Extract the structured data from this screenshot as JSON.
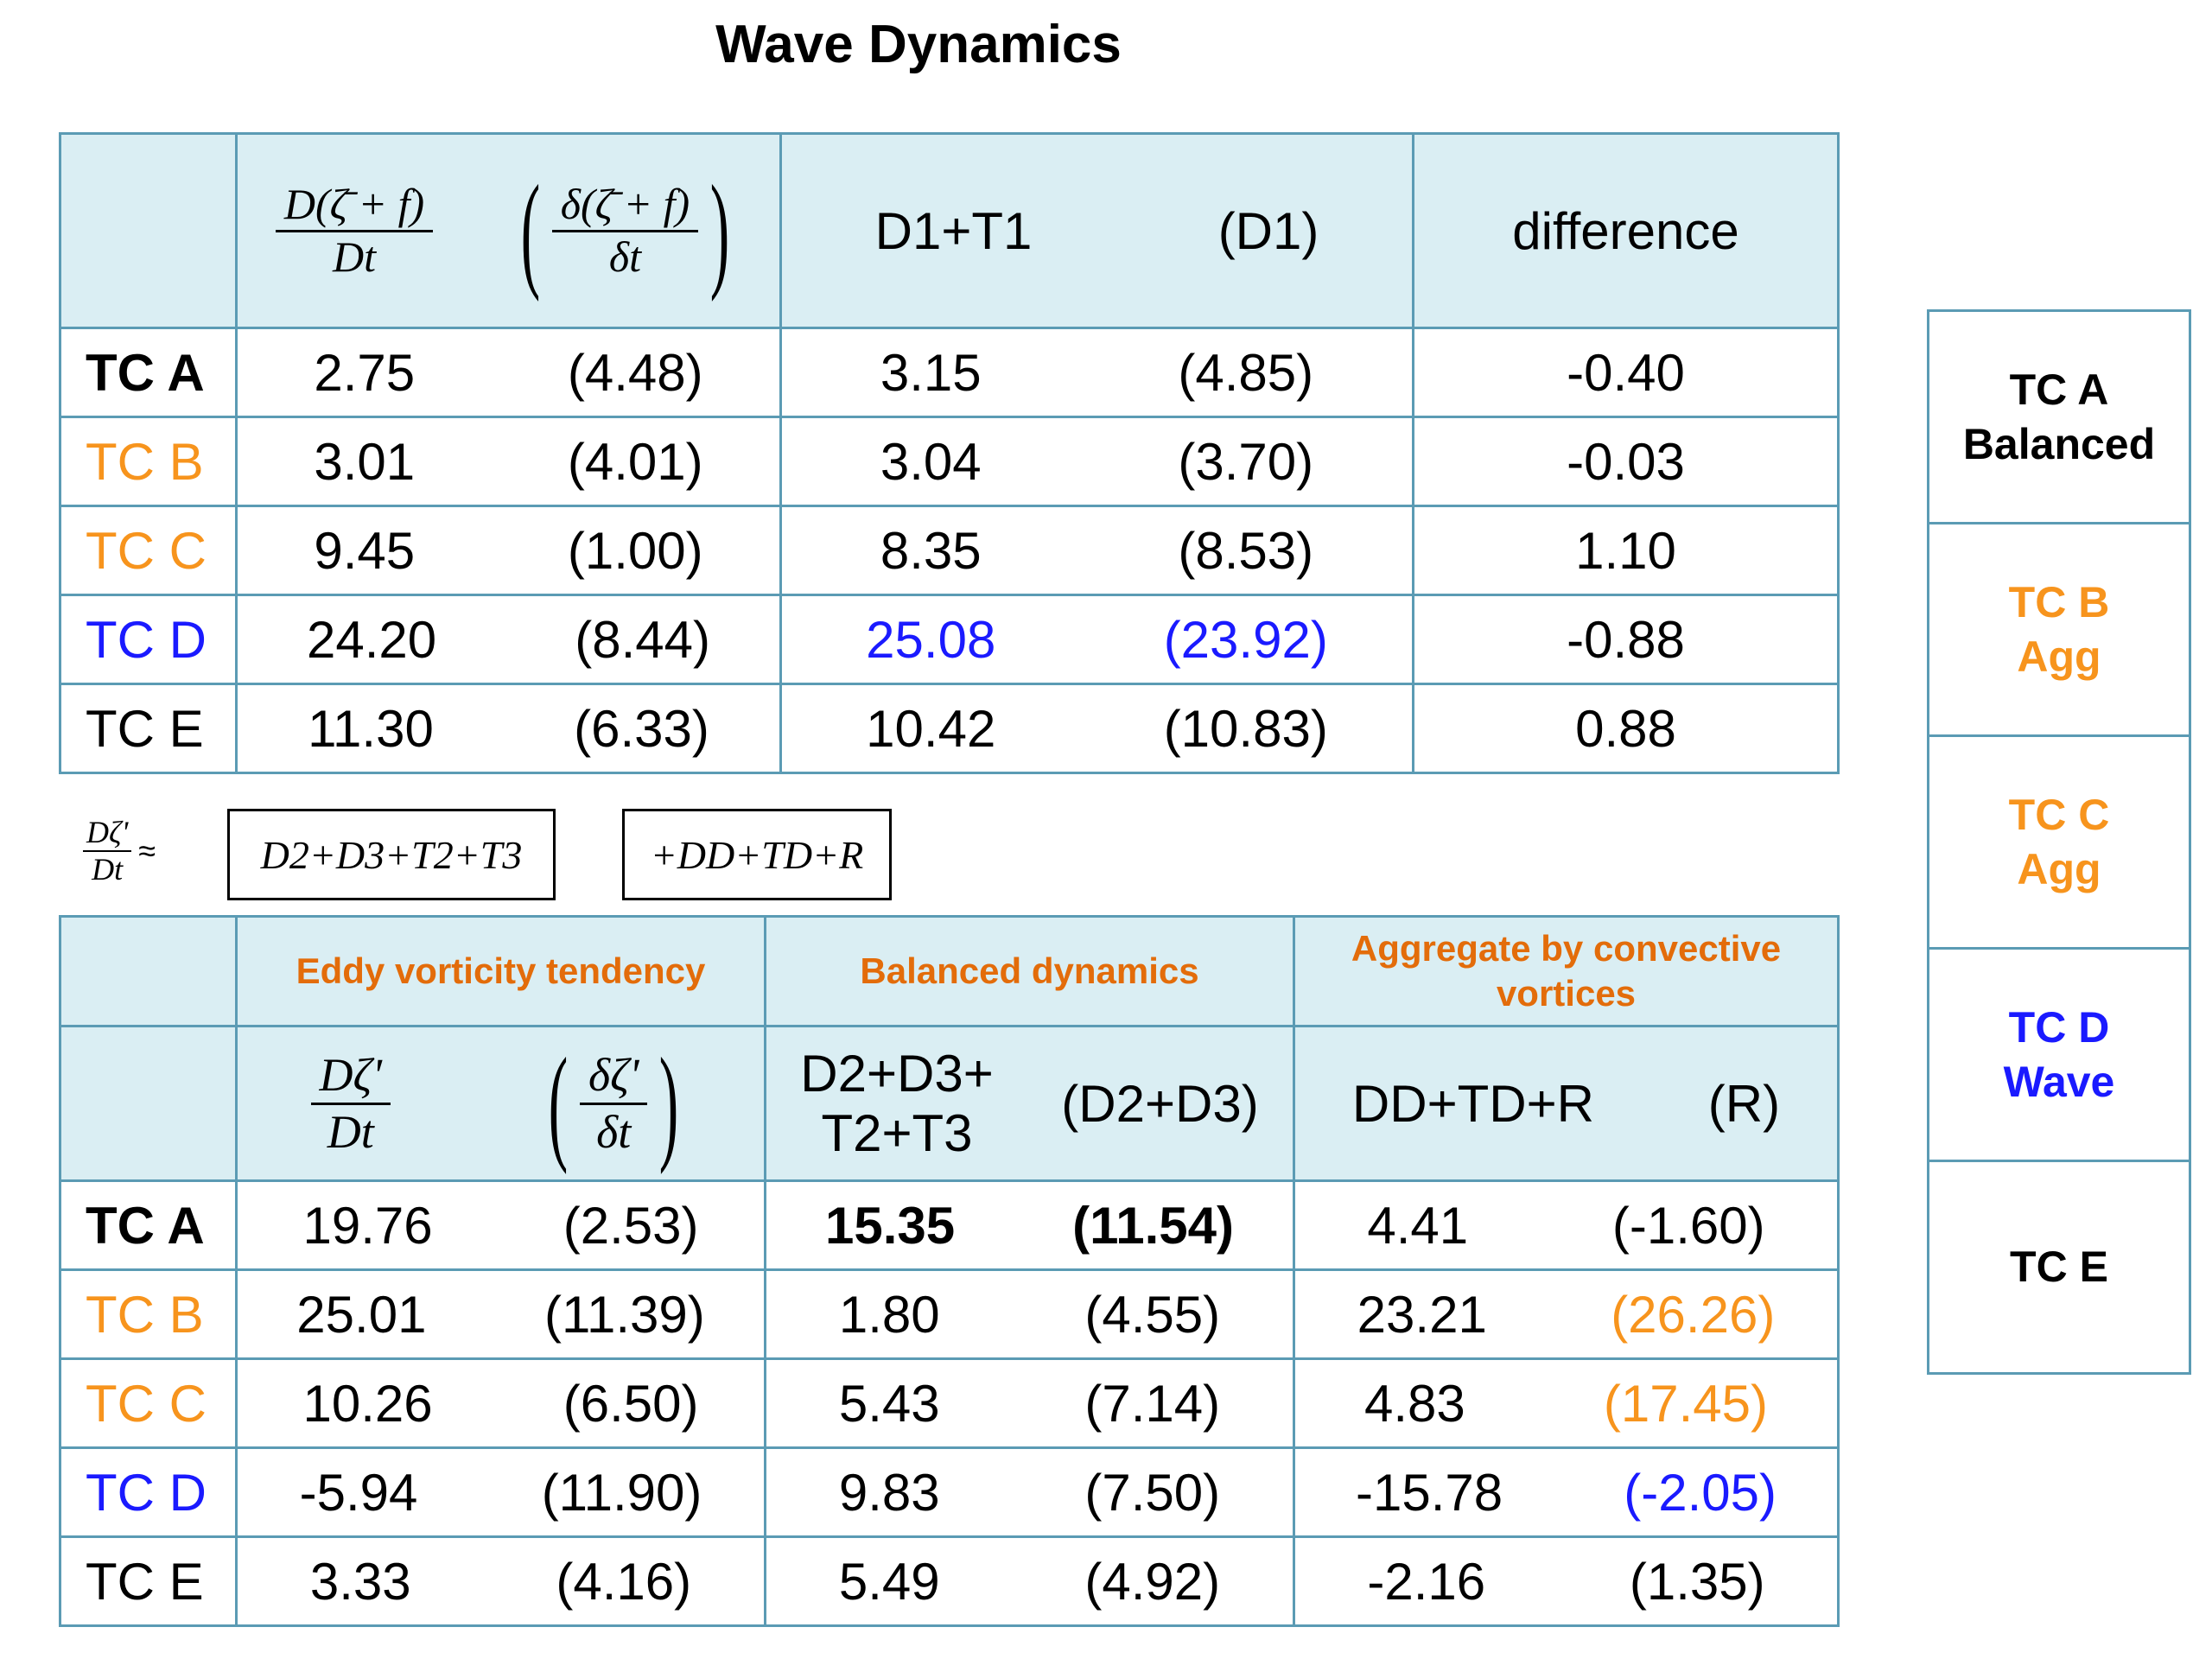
{
  "title": "Wave Dynamics",
  "top_table": {
    "col1_frac": {
      "num": "D(ζ̄ + f)",
      "den": "Dt"
    },
    "col1_paren_frac": {
      "num": "δ(ζ̄ + f)",
      "den": "δt"
    },
    "col2_head": "D1+T1",
    "col2_paren_head": "(D1)",
    "col3_head": "difference",
    "rows": [
      {
        "label": "TC A",
        "v1": "2.75",
        "v1p": "(4.48)",
        "v2": "3.15",
        "v2p": "(4.85)",
        "diff": "-0.40"
      },
      {
        "label": "TC B",
        "v1": "3.01",
        "v1p": "(4.01)",
        "v2": "3.04",
        "v2p": "(3.70)",
        "diff": "-0.03"
      },
      {
        "label": "TC C",
        "v1": "9.45",
        "v1p": "(1.00)",
        "v2": "8.35",
        "v2p": "(8.53)",
        "diff": "1.10"
      },
      {
        "label": "TC D",
        "v1": "24.20",
        "v1p": "(8.44)",
        "v2": "25.08",
        "v2p": "(23.92)",
        "diff": "-0.88"
      },
      {
        "label": "TC E",
        "v1": "11.30",
        "v1p": "(6.33)",
        "v2": "10.42",
        "v2p": "(10.83)",
        "diff": "0.88"
      }
    ]
  },
  "equation": {
    "lhs_num": "Dζ'",
    "lhs_den": "Dt",
    "approx": "≈",
    "box1": "D2+D3+T2+T3",
    "box2": "+DD+TD+R"
  },
  "bottom_table": {
    "group1": "Eddy vorticity tendency",
    "group2": "Balanced dynamics",
    "group3": "Aggregate by convective vortices",
    "col1_frac": {
      "num": "Dζ'",
      "den": "Dt"
    },
    "col1_paren_frac": {
      "num": "δζ'",
      "den": "δt"
    },
    "col2_head_line1": "D2+D3+",
    "col2_head_line2": "T2+T3",
    "col2_paren_head": "(D2+D3)",
    "col3_head": "DD+TD+R",
    "col3_paren_head": "(R)",
    "rows": [
      {
        "label": "TC A",
        "v1": "19.76",
        "v1p": "(2.53)",
        "v2": "15.35",
        "v2p": "(11.54)",
        "v3": "4.41",
        "v3p": "(-1.60)"
      },
      {
        "label": "TC B",
        "v1": "25.01",
        "v1p": "(11.39)",
        "v2": "1.80",
        "v2p": "(4.55)",
        "v3": "23.21",
        "v3p": "(26.26)"
      },
      {
        "label": "TC C",
        "v1": "10.26",
        "v1p": "(6.50)",
        "v2": "5.43",
        "v2p": "(7.14)",
        "v3": "4.83",
        "v3p": "(17.45)"
      },
      {
        "label": "TC D",
        "v1": "-5.94",
        "v1p": "(11.90)",
        "v2": "9.83",
        "v2p": "(7.50)",
        "v3": "-15.78",
        "v3p": "(-2.05)"
      },
      {
        "label": "TC E",
        "v1": "3.33",
        "v1p": "(4.16)",
        "v2": "5.49",
        "v2p": "(4.92)",
        "v3": "-2.16",
        "v3p": "(1.35)"
      }
    ]
  },
  "legend": [
    {
      "line1": "TC A",
      "line2": "Balanced"
    },
    {
      "line1": "TC B",
      "line2": "Agg"
    },
    {
      "line1": "TC C",
      "line2": "Agg"
    },
    {
      "line1": "TC D",
      "line2": "Wave"
    },
    {
      "line1": "TC E",
      "line2": ""
    }
  ],
  "colors": {
    "border": "#5b9bb4",
    "header_bg": "#daeef3",
    "orange": "#f7941d",
    "blue": "#1a1aff",
    "group_header": "#e36c0a"
  }
}
